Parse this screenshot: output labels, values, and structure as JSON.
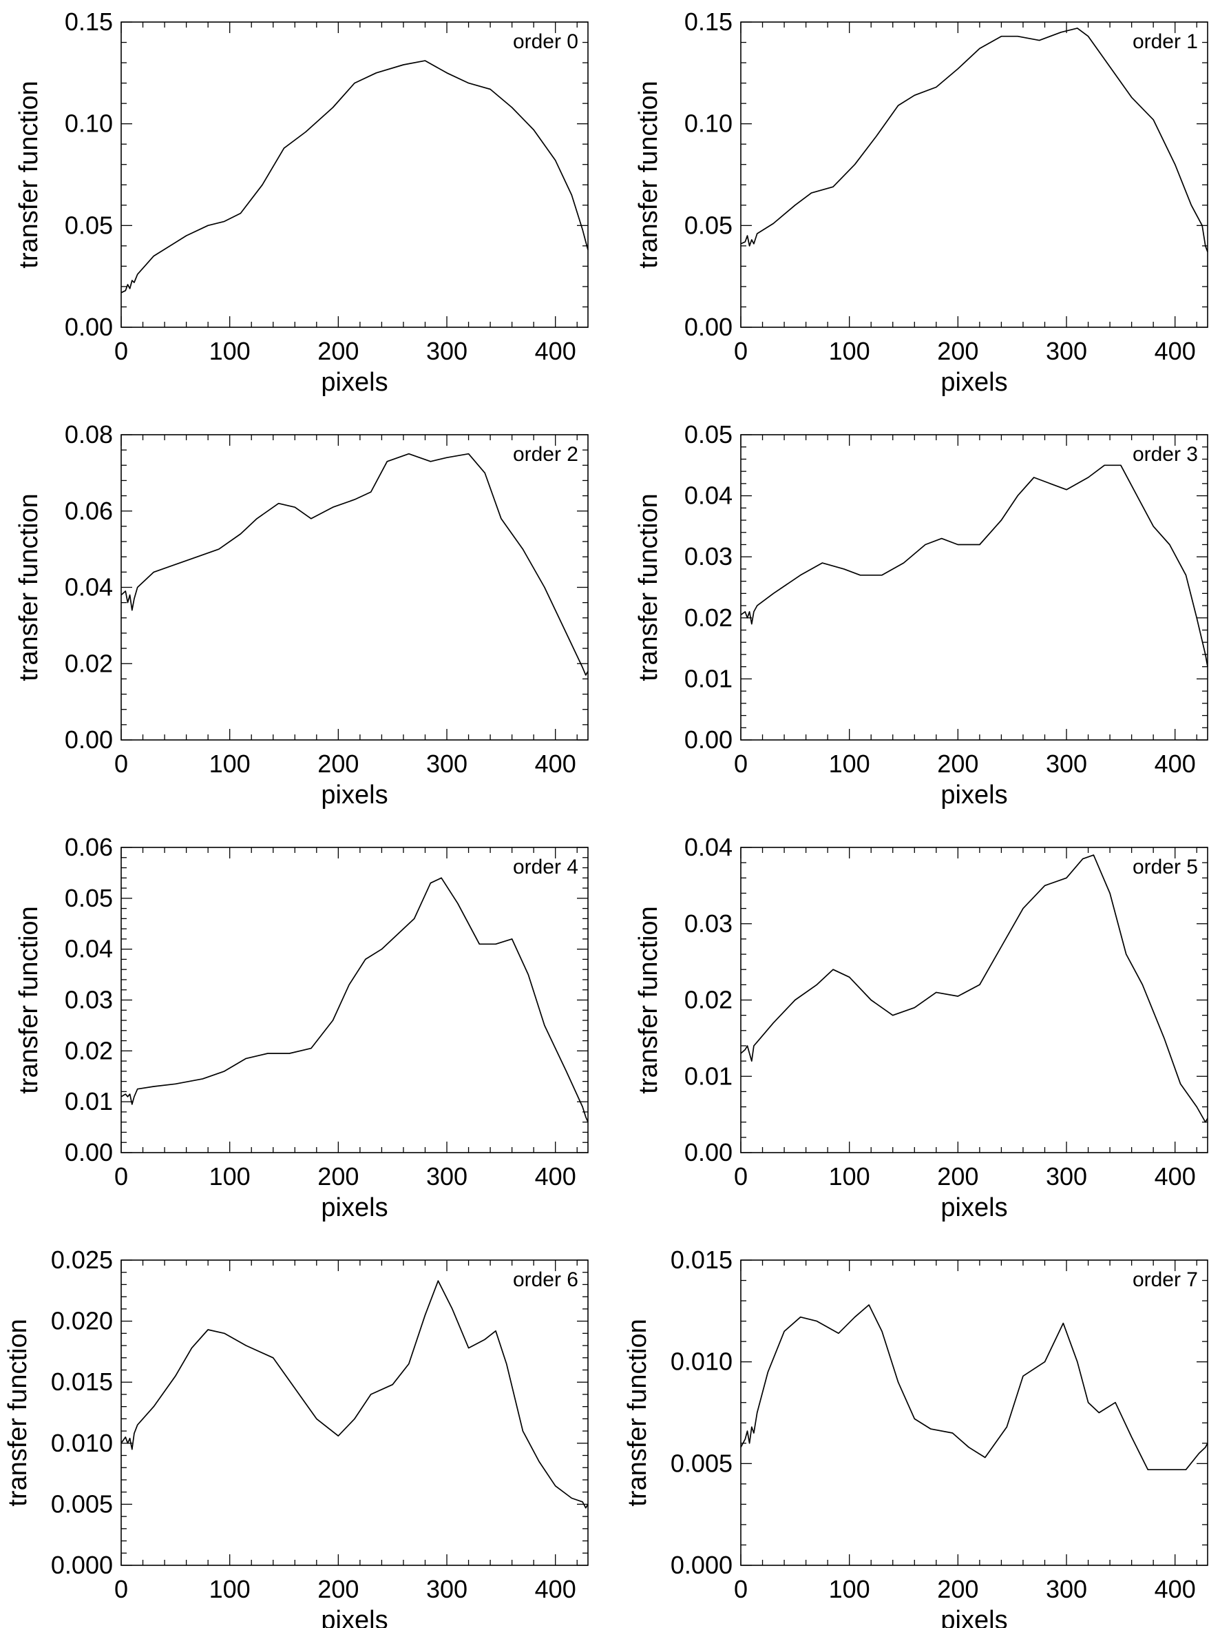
{
  "chart_data": [
    {
      "type": "line",
      "annotation": "order 0",
      "xlabel": "pixels",
      "ylabel": "transfer function",
      "xlim": [
        0,
        430
      ],
      "ylim": [
        0,
        0.15
      ],
      "xticks": [
        "0",
        "100",
        "200",
        "300",
        "400"
      ],
      "yticks": [
        "0.00",
        "0.05",
        "0.10",
        "0.15"
      ],
      "series": [
        {
          "x": [
            0,
            4,
            6,
            8,
            10,
            12,
            15,
            30,
            60,
            80,
            95,
            110,
            130,
            150,
            170,
            195,
            215,
            235,
            260,
            280,
            300,
            320,
            340,
            360,
            380,
            400,
            415,
            425,
            428,
            430
          ],
          "y": [
            0.017,
            0.018,
            0.021,
            0.019,
            0.023,
            0.022,
            0.026,
            0.035,
            0.045,
            0.05,
            0.052,
            0.056,
            0.07,
            0.088,
            0.096,
            0.108,
            0.12,
            0.125,
            0.129,
            0.131,
            0.125,
            0.12,
            0.117,
            0.108,
            0.097,
            0.082,
            0.065,
            0.048,
            0.042,
            0.038
          ]
        }
      ]
    },
    {
      "type": "line",
      "annotation": "order 1",
      "xlabel": "pixels",
      "ylabel": "transfer function",
      "xlim": [
        0,
        430
      ],
      "ylim": [
        0,
        0.15
      ],
      "xticks": [
        "0",
        "100",
        "200",
        "300",
        "400"
      ],
      "yticks": [
        "0.00",
        "0.05",
        "0.10",
        "0.15"
      ],
      "series": [
        {
          "x": [
            0,
            4,
            6,
            8,
            10,
            12,
            15,
            30,
            50,
            65,
            85,
            105,
            125,
            145,
            160,
            180,
            200,
            220,
            240,
            255,
            275,
            295,
            310,
            320,
            340,
            360,
            380,
            400,
            415,
            425,
            428,
            430
          ],
          "y": [
            0.041,
            0.042,
            0.045,
            0.04,
            0.043,
            0.041,
            0.046,
            0.051,
            0.06,
            0.066,
            0.069,
            0.08,
            0.094,
            0.109,
            0.114,
            0.118,
            0.127,
            0.137,
            0.143,
            0.143,
            0.141,
            0.145,
            0.147,
            0.143,
            0.128,
            0.113,
            0.102,
            0.08,
            0.06,
            0.05,
            0.04,
            0.037
          ]
        }
      ]
    },
    {
      "type": "line",
      "annotation": "order 2",
      "xlabel": "pixels",
      "ylabel": "transfer function",
      "xlim": [
        0,
        430
      ],
      "ylim": [
        0,
        0.08
      ],
      "xticks": [
        "0",
        "100",
        "200",
        "300",
        "400"
      ],
      "yticks": [
        "0.00",
        "0.02",
        "0.04",
        "0.06",
        "0.08"
      ],
      "series": [
        {
          "x": [
            0,
            4,
            6,
            8,
            10,
            12,
            15,
            30,
            50,
            70,
            90,
            110,
            125,
            145,
            160,
            175,
            195,
            215,
            230,
            245,
            265,
            285,
            300,
            320,
            335,
            350,
            370,
            390,
            410,
            425,
            428,
            430
          ],
          "y": [
            0.038,
            0.039,
            0.036,
            0.038,
            0.034,
            0.037,
            0.04,
            0.044,
            0.046,
            0.048,
            0.05,
            0.054,
            0.058,
            0.062,
            0.061,
            0.058,
            0.061,
            0.063,
            0.065,
            0.073,
            0.075,
            0.073,
            0.074,
            0.075,
            0.07,
            0.058,
            0.05,
            0.04,
            0.028,
            0.019,
            0.017,
            0.018
          ]
        }
      ]
    },
    {
      "type": "line",
      "annotation": "order 3",
      "xlabel": "pixels",
      "ylabel": "transfer function",
      "xlim": [
        0,
        430
      ],
      "ylim": [
        0,
        0.05
      ],
      "xticks": [
        "0",
        "100",
        "200",
        "300",
        "400"
      ],
      "yticks": [
        "0.00",
        "0.01",
        "0.02",
        "0.03",
        "0.04",
        "0.05"
      ],
      "series": [
        {
          "x": [
            0,
            4,
            6,
            8,
            10,
            12,
            15,
            30,
            55,
            75,
            95,
            110,
            130,
            150,
            170,
            185,
            200,
            220,
            240,
            255,
            270,
            285,
            300,
            320,
            335,
            350,
            365,
            380,
            395,
            410,
            420,
            428,
            430
          ],
          "y": [
            0.0205,
            0.021,
            0.02,
            0.021,
            0.019,
            0.021,
            0.022,
            0.024,
            0.027,
            0.029,
            0.028,
            0.027,
            0.027,
            0.029,
            0.032,
            0.033,
            0.032,
            0.032,
            0.036,
            0.04,
            0.043,
            0.042,
            0.041,
            0.043,
            0.045,
            0.045,
            0.04,
            0.035,
            0.032,
            0.027,
            0.02,
            0.014,
            0.012
          ]
        }
      ]
    },
    {
      "type": "line",
      "annotation": "order 4",
      "xlabel": "pixels",
      "ylabel": "transfer function",
      "xlim": [
        0,
        430
      ],
      "ylim": [
        0,
        0.06
      ],
      "xticks": [
        "0",
        "100",
        "200",
        "300",
        "400"
      ],
      "yticks": [
        "0.00",
        "0.01",
        "0.02",
        "0.03",
        "0.04",
        "0.05",
        "0.06"
      ],
      "series": [
        {
          "x": [
            0,
            4,
            6,
            8,
            10,
            12,
            15,
            30,
            50,
            75,
            95,
            115,
            135,
            155,
            175,
            195,
            210,
            225,
            240,
            255,
            270,
            285,
            295,
            310,
            330,
            345,
            360,
            375,
            390,
            410,
            425,
            428,
            430
          ],
          "y": [
            0.011,
            0.0115,
            0.011,
            0.0115,
            0.0095,
            0.011,
            0.0125,
            0.013,
            0.0135,
            0.0145,
            0.016,
            0.0185,
            0.0195,
            0.0195,
            0.0205,
            0.026,
            0.033,
            0.038,
            0.04,
            0.043,
            0.046,
            0.053,
            0.054,
            0.049,
            0.041,
            0.041,
            0.042,
            0.035,
            0.025,
            0.016,
            0.009,
            0.007,
            0.006
          ]
        }
      ]
    },
    {
      "type": "line",
      "annotation": "order 5",
      "xlabel": "pixels",
      "ylabel": "transfer function",
      "xlim": [
        0,
        430
      ],
      "ylim": [
        0,
        0.04
      ],
      "xticks": [
        "0",
        "100",
        "200",
        "300",
        "400"
      ],
      "yticks": [
        "0.00",
        "0.01",
        "0.02",
        "0.03",
        "0.04"
      ],
      "series": [
        {
          "x": [
            0,
            4,
            6,
            8,
            10,
            12,
            15,
            30,
            50,
            70,
            85,
            100,
            120,
            140,
            160,
            180,
            200,
            220,
            240,
            260,
            280,
            300,
            315,
            325,
            340,
            355,
            370,
            390,
            405,
            420,
            428,
            430
          ],
          "y": [
            0.013,
            0.0135,
            0.014,
            0.013,
            0.012,
            0.014,
            0.0145,
            0.017,
            0.02,
            0.022,
            0.024,
            0.023,
            0.02,
            0.018,
            0.019,
            0.021,
            0.0205,
            0.022,
            0.027,
            0.032,
            0.035,
            0.036,
            0.0385,
            0.039,
            0.034,
            0.026,
            0.022,
            0.015,
            0.009,
            0.006,
            0.004,
            0.0045
          ]
        }
      ]
    },
    {
      "type": "line",
      "annotation": "order 6",
      "xlabel": "pixels",
      "ylabel": "transfer function",
      "xlim": [
        0,
        430
      ],
      "ylim": [
        0,
        0.025
      ],
      "xticks": [
        "0",
        "100",
        "200",
        "300",
        "400"
      ],
      "yticks": [
        "0.000",
        "0.005",
        "0.010",
        "0.015",
        "0.020",
        "0.025"
      ],
      "series": [
        {
          "x": [
            0,
            4,
            6,
            8,
            10,
            12,
            15,
            30,
            50,
            65,
            80,
            95,
            115,
            140,
            160,
            180,
            200,
            215,
            230,
            250,
            265,
            280,
            292,
            305,
            320,
            335,
            345,
            355,
            370,
            385,
            400,
            415,
            425,
            428,
            430
          ],
          "y": [
            0.01,
            0.0105,
            0.01,
            0.0104,
            0.0095,
            0.0108,
            0.0115,
            0.013,
            0.0155,
            0.0178,
            0.0193,
            0.019,
            0.018,
            0.017,
            0.0145,
            0.012,
            0.0106,
            0.012,
            0.014,
            0.0148,
            0.0165,
            0.0205,
            0.0233,
            0.021,
            0.0178,
            0.0185,
            0.0192,
            0.0165,
            0.011,
            0.0085,
            0.0065,
            0.0055,
            0.0052,
            0.0047,
            0.005
          ]
        }
      ]
    },
    {
      "type": "line",
      "annotation": "order 7",
      "xlabel": "pixels",
      "ylabel": "transfer function",
      "xlim": [
        0,
        430
      ],
      "ylim": [
        0,
        0.015
      ],
      "xticks": [
        "0",
        "100",
        "200",
        "300",
        "400"
      ],
      "yticks": [
        "0.000",
        "0.005",
        "0.010",
        "0.015"
      ],
      "series": [
        {
          "x": [
            0,
            4,
            6,
            8,
            10,
            12,
            15,
            25,
            40,
            55,
            70,
            90,
            105,
            118,
            130,
            145,
            160,
            175,
            195,
            210,
            225,
            245,
            260,
            280,
            297,
            310,
            320,
            330,
            345,
            360,
            375,
            395,
            410,
            422,
            428,
            430
          ],
          "y": [
            0.0058,
            0.0062,
            0.0066,
            0.006,
            0.0068,
            0.0065,
            0.0075,
            0.0095,
            0.0115,
            0.0122,
            0.012,
            0.0114,
            0.0122,
            0.0128,
            0.0115,
            0.009,
            0.0072,
            0.0067,
            0.0065,
            0.0058,
            0.0053,
            0.0068,
            0.0093,
            0.01,
            0.0119,
            0.01,
            0.008,
            0.0075,
            0.008,
            0.0063,
            0.0047,
            0.0047,
            0.0047,
            0.0055,
            0.0058,
            0.006
          ]
        }
      ]
    }
  ]
}
